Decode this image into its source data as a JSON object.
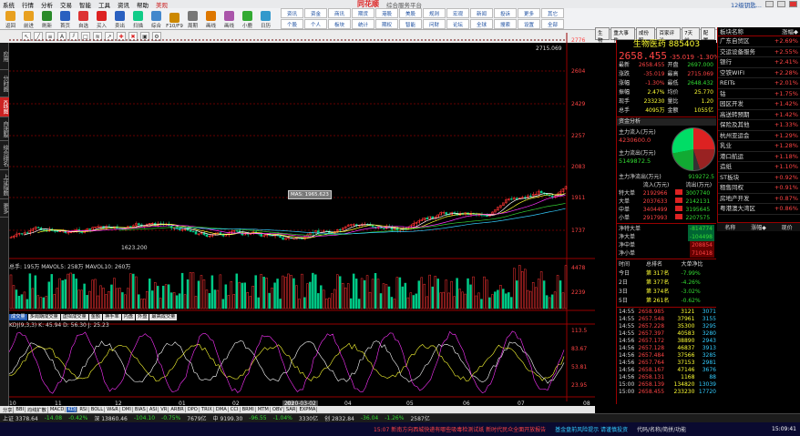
{
  "menubar": {
    "items": [
      "系统",
      "行情",
      "分析",
      "交易",
      "智能",
      "工具",
      "资讯",
      "帮助",
      "美观"
    ],
    "app": "同花顺",
    "subtitle": "综合服务平台",
    "login": "12级钥匙..."
  },
  "toolbar": {
    "buttons": [
      "返回",
      "前进",
      "刷新",
      "首页",
      "自选",
      "买入",
      "卖出",
      "扫描",
      "综合",
      "F10/F9",
      "周期",
      "画线",
      "画线",
      "小鹿",
      "日历"
    ],
    "right": [
      "资讯",
      "资金",
      "商讯",
      "期货",
      "港股",
      "美股",
      "规则",
      "宏观",
      "新闻",
      "投诉",
      "更多",
      "其它",
      "个股",
      "个人",
      "板块",
      "统计",
      "期权",
      "智能",
      "问财",
      "论坛",
      "全球",
      "搜索",
      "设置",
      "全部"
    ]
  },
  "lefttabs": [
    "应用",
    "分时图",
    "K线图",
    "自选股",
    "综合排名",
    "上证指数",
    "更多"
  ],
  "chart": {
    "title": "2715.069",
    "ticks": [
      "2776",
      "2604",
      "2429",
      "2257",
      "2083",
      "1911",
      "1737"
    ],
    "lowlabel": "1623.200",
    "mas_label": "MAS: 1965.623",
    "vol_label": "总手: 195万  MAVOL5: 258万  MAVOL10: 260万",
    "vol_ticks": [
      "4478",
      "2239"
    ],
    "kdj_label": "KDJ(9,3,3) K: 45.94  D: 56.30  J: 25.23",
    "kdj_ticks": [
      "113.5",
      "83.67",
      "53.81",
      "23.95"
    ],
    "months": [
      "10",
      "11",
      "12",
      "01",
      "02",
      "03",
      "04",
      "05",
      "06",
      "07",
      "08"
    ],
    "date_label": "2020-03-02",
    "ind_tabs": [
      "成交量",
      "多周期成交量",
      "虚拟成交量",
      "金额",
      "换手率",
      "内盘",
      "外盘",
      "最高成交量"
    ]
  },
  "chart_data": {
    "type": "candlestick",
    "x": [
      "10",
      "11",
      "12",
      "01",
      "02",
      "03",
      "04",
      "05",
      "06",
      "07",
      "08"
    ],
    "y_range": [
      1623.2,
      2715.069
    ]
  },
  "rtop": [
    "生物",
    "重大事件",
    "成份股",
    "百家评论",
    "7天前",
    "配置"
  ],
  "quote": {
    "name": "生物医药 885403",
    "price": "2658.455",
    "chg": "-35.019",
    "pct": "-1.30%",
    "rows": [
      [
        "最新",
        "2658.455",
        "开盘",
        "2697.000"
      ],
      [
        "涨跌",
        "-35.019",
        "最高",
        "2715.069"
      ],
      [
        "涨幅",
        "-1.30%",
        "最低",
        "2648.432"
      ],
      [
        "振幅",
        "2.47%",
        "均价",
        "25.770"
      ],
      [
        "现手",
        "233230",
        "量比",
        "1.20"
      ],
      [
        "总手",
        "4095万",
        "金额",
        "1055亿"
      ]
    ],
    "flowhdr": "资金分析",
    "flow_main_in": "主力流入(万元)",
    "flow_main_in_val": "4230600.0",
    "flow_main_out": "主力流出(万元)",
    "flow_main_out_val": "5149872.5",
    "flow_net": "主力净流出(万元)",
    "flow_net_val": "919272.5",
    "flowtable": [
      [
        "",
        "流入(万元)",
        "",
        "流出(万元)"
      ],
      [
        "特大单",
        "2192966",
        "",
        "3007740"
      ],
      [
        "大单",
        "2037633",
        "",
        "2142131"
      ],
      [
        "中单",
        "3404499",
        "",
        "3195645"
      ],
      [
        "小单",
        "2917993",
        "",
        "2207575"
      ]
    ],
    "nets": [
      [
        "净特大单",
        "-814774"
      ],
      [
        "净大单",
        "-104498"
      ],
      [
        "净中单",
        "208854"
      ],
      [
        "净小单",
        "710418"
      ]
    ],
    "rank_hdr": [
      "时间",
      "总排名",
      "大单净比"
    ],
    "ranks": [
      [
        "今日",
        "第 317名",
        "-7.99%"
      ],
      [
        "2日",
        "第 377名",
        "-4.26%"
      ],
      [
        "3日",
        "第 374名",
        "-3.02%"
      ],
      [
        "5日",
        "第 261名",
        "-0.62%"
      ]
    ],
    "ticks": [
      [
        "14:55",
        "2658.985",
        "3121",
        "3071"
      ],
      [
        "14:55",
        "2657.548",
        "37961",
        "3155"
      ],
      [
        "14:55",
        "2657.228",
        "35300",
        "3295"
      ],
      [
        "14:55",
        "2657.397",
        "40583",
        "3280"
      ],
      [
        "14:56",
        "2657.172",
        "38890",
        "2943"
      ],
      [
        "14:56",
        "2657.128",
        "46837",
        "3913"
      ],
      [
        "14:56",
        "2657.484",
        "37566",
        "3285"
      ],
      [
        "14:56",
        "2657.764",
        "37153",
        "2981"
      ],
      [
        "14:56",
        "2658.167",
        "47146",
        "3676"
      ],
      [
        "14:56",
        "2658.131",
        "1168",
        "88"
      ],
      [
        "15:00",
        "2658.139",
        "134820",
        "13039"
      ],
      [
        "15:00",
        "2658.455",
        "233230",
        "17720"
      ]
    ]
  },
  "sector": {
    "hdr": [
      "板块名称",
      "涨幅◆"
    ],
    "rows": [
      [
        "广东自贸区",
        "+2.69%"
      ],
      [
        "交运设备服务",
        "+2.55%"
      ],
      [
        "银行",
        "+2.41%"
      ],
      [
        "空铁WIFI",
        "+2.28%"
      ],
      [
        "REITs",
        "+2.01%"
      ],
      [
        "钴",
        "+1.75%"
      ],
      [
        "园区开发",
        "+1.42%"
      ],
      [
        "高送转预期",
        "+1.42%"
      ],
      [
        "保险及其他",
        "+1.33%"
      ],
      [
        "杭州亚运会",
        "+1.29%"
      ],
      [
        "乳业",
        "+1.28%"
      ],
      [
        "港口航运",
        "+1.18%"
      ],
      [
        "造纸",
        "+1.10%"
      ],
      [
        "ST板块",
        "+0.92%"
      ],
      [
        "租售同权",
        "+0.91%"
      ],
      [
        "房地产开发",
        "+0.87%"
      ],
      [
        "粤港澳大湾区",
        "+0.86%"
      ]
    ],
    "btns": [
      "名称",
      "涨幅◆",
      "现价"
    ]
  },
  "bottomtabs": [
    "分享",
    "BBI",
    "均线扩散",
    "MACD",
    "KDJ",
    "RSI",
    "BOLL",
    "W&R",
    "DMI",
    "BIAS",
    "ASI",
    "VR",
    "ARBR",
    "DPO",
    "TRIX",
    "DMA",
    "CCI",
    "BRMI",
    "MTM",
    "OBV",
    "SAR",
    "EXPMA"
  ],
  "ticker": [
    "上证 3378.64",
    "-14.08",
    "-0.42%",
    "深 13860.46",
    "-104.10",
    "-0.75%",
    "7679亿",
    "中 9199.30",
    "-96.55",
    "-1.04%",
    "3330亿",
    "创 2832.84",
    "-36.04",
    "-1.26%",
    "2587亿"
  ],
  "status": {
    "news": "15:07 新南方向西城快递有哪些吸毒检测试纸 新时代民众全面开放报告",
    "hint": "基金盘前风险提示 请谨慎投资",
    "right": "代码/名称/简拼/功能",
    "time": "15:09:41"
  }
}
